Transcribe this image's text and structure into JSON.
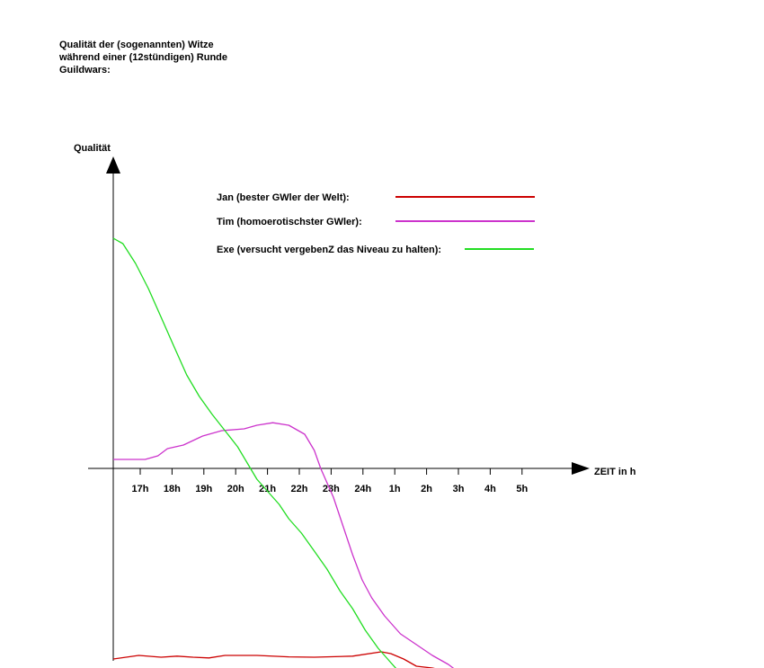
{
  "chart_data": {
    "type": "line",
    "title_lines": [
      "Qualität der (sogenannten) Witze",
      "während einer (12stündigen) Runde",
      "Guildwars:"
    ],
    "ylabel": "Qualität",
    "xlabel": "ZEIT in h",
    "categories": [
      "17h",
      "18h",
      "19h",
      "20h",
      "21h",
      "22h",
      "23h",
      "24h",
      "1h",
      "2h",
      "3h",
      "4h",
      "5h"
    ],
    "y_ticks": false,
    "grid": false,
    "legend_position": "top-center",
    "series": [
      {
        "name": "Jan (bester GWler der Welt):",
        "color": "#cc0000",
        "points": [
          [
            16.5,
            -5.3
          ],
          [
            17.3,
            -5.2
          ],
          [
            18.0,
            -5.25
          ],
          [
            18.5,
            -5.22
          ],
          [
            19.0,
            -5.25
          ],
          [
            19.5,
            -5.27
          ],
          [
            20.0,
            -5.2
          ],
          [
            21.0,
            -5.2
          ],
          [
            22.0,
            -5.24
          ],
          [
            22.8,
            -5.25
          ],
          [
            24.0,
            -5.22
          ],
          [
            24.9,
            -5.1
          ],
          [
            25.2,
            -5.15
          ],
          [
            25.6,
            -5.3
          ],
          [
            26.0,
            -5.5
          ],
          [
            26.5,
            -5.55
          ],
          [
            27.0,
            -5.65
          ],
          [
            27.5,
            -5.8
          ],
          [
            27.9,
            -6.05
          ]
        ]
      },
      {
        "name": "Tim (homoerotischster GWler):",
        "color": "#cc33cc",
        "points": [
          [
            16.5,
            0.25
          ],
          [
            17.0,
            0.25
          ],
          [
            17.5,
            0.25
          ],
          [
            17.9,
            0.35
          ],
          [
            18.2,
            0.55
          ],
          [
            18.7,
            0.65
          ],
          [
            19.3,
            0.9
          ],
          [
            19.9,
            1.05
          ],
          [
            20.6,
            1.1
          ],
          [
            21.0,
            1.2
          ],
          [
            21.5,
            1.27
          ],
          [
            22.0,
            1.2
          ],
          [
            22.5,
            0.95
          ],
          [
            22.8,
            0.5
          ],
          [
            23.0,
            0.0
          ],
          [
            23.4,
            -0.8
          ],
          [
            23.7,
            -1.6
          ],
          [
            24.0,
            -2.4
          ],
          [
            24.3,
            -3.1
          ],
          [
            24.6,
            -3.6
          ],
          [
            25.0,
            -4.1
          ],
          [
            25.5,
            -4.6
          ],
          [
            26.0,
            -4.9
          ],
          [
            26.5,
            -5.2
          ],
          [
            27.0,
            -5.45
          ],
          [
            27.3,
            -5.65
          ],
          [
            27.6,
            -5.95
          ],
          [
            27.8,
            -6.1
          ]
        ]
      },
      {
        "name": "Exe (versucht vergebenZ das Niveau zu halten):",
        "color": "#22dd22",
        "points": [
          [
            16.5,
            6.4
          ],
          [
            16.8,
            6.25
          ],
          [
            17.2,
            5.7
          ],
          [
            17.6,
            5.0
          ],
          [
            18.0,
            4.2
          ],
          [
            18.4,
            3.4
          ],
          [
            18.8,
            2.6
          ],
          [
            19.2,
            2.0
          ],
          [
            19.6,
            1.5
          ],
          [
            20.0,
            1.05
          ],
          [
            20.4,
            0.6
          ],
          [
            20.7,
            0.15
          ],
          [
            21.0,
            -0.3
          ],
          [
            21.3,
            -0.6
          ],
          [
            21.7,
            -1.0
          ],
          [
            22.0,
            -1.4
          ],
          [
            22.4,
            -1.8
          ],
          [
            22.8,
            -2.3
          ],
          [
            23.2,
            -2.8
          ],
          [
            23.6,
            -3.4
          ],
          [
            24.0,
            -3.9
          ],
          [
            24.4,
            -4.5
          ],
          [
            24.8,
            -5.0
          ],
          [
            25.2,
            -5.4
          ],
          [
            25.6,
            -5.8
          ],
          [
            26.0,
            -6.15
          ]
        ]
      }
    ]
  }
}
